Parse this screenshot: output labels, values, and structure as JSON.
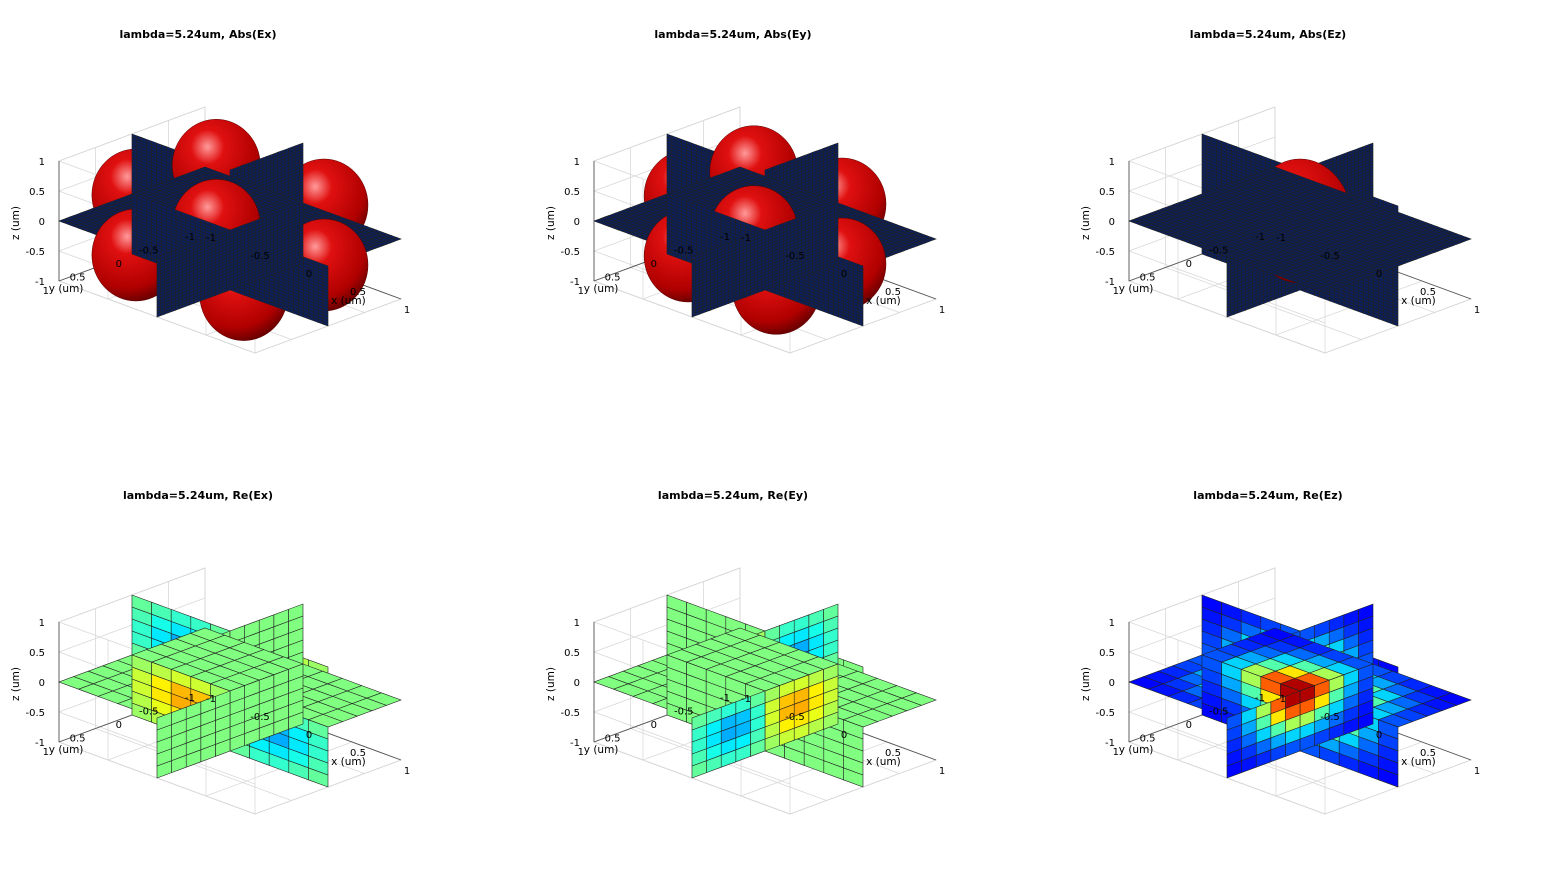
{
  "chart_data": [
    {
      "type": "3d-slice",
      "kind": "abs",
      "component": "Ex",
      "title": "lambda=5.24um,  Abs(Ex)",
      "xlabel": "x (um)",
      "ylabel": "y (um)",
      "zlabel": "z (um)",
      "xlim": [
        -1,
        1
      ],
      "ylim": [
        -1,
        1
      ],
      "zlim": [
        -1,
        1
      ],
      "xticks": [
        "-1",
        "-0.5",
        "0",
        "0.5",
        "1"
      ],
      "yticks": [
        "-1",
        "-0.5",
        "0",
        "0.5",
        "1"
      ],
      "zticks": [
        "-1",
        "-0.5",
        "0",
        "0.5",
        "1"
      ],
      "slices": [
        "x=0",
        "y=0",
        "z=0"
      ],
      "isosurface_lobes": [
        [
          0.55,
          0.55,
          0.5
        ],
        [
          -0.55,
          0.55,
          0.5
        ],
        [
          0.55,
          -0.55,
          0.5
        ],
        [
          -0.55,
          -0.55,
          0.5
        ],
        [
          0.55,
          0.55,
          -0.5
        ],
        [
          -0.55,
          0.55,
          -0.5
        ],
        [
          0.55,
          -0.55,
          -0.5
        ],
        [
          -0.55,
          -0.55,
          -0.5
        ]
      ],
      "isosurface_color": "#cc0000",
      "slice_color": "#0a1f5c"
    },
    {
      "type": "3d-slice",
      "kind": "abs",
      "component": "Ey",
      "title": "lambda=5.24um,  Abs(Ey)",
      "xlabel": "x (um)",
      "ylabel": "y (um)",
      "zlabel": "z (um)",
      "xlim": [
        -1,
        1
      ],
      "ylim": [
        -1,
        1
      ],
      "zlim": [
        -1,
        1
      ],
      "xticks": [
        "-1",
        "-0.5",
        "0",
        "0.5",
        "1"
      ],
      "yticks": [
        "-1",
        "-0.5",
        "0",
        "0.5",
        "1"
      ],
      "zticks": [
        "-1",
        "-0.5",
        "0",
        "0.5",
        "1"
      ],
      "slices": [
        "x=0",
        "y=0",
        "z=0"
      ],
      "isosurface_lobes": [
        [
          0.45,
          0.45,
          0.5
        ],
        [
          -0.45,
          0.45,
          0.5
        ],
        [
          0.45,
          -0.45,
          0.5
        ],
        [
          -0.45,
          -0.45,
          0.5
        ],
        [
          0.45,
          0.45,
          -0.5
        ],
        [
          -0.45,
          0.45,
          -0.5
        ],
        [
          0.45,
          -0.45,
          -0.5
        ],
        [
          -0.45,
          -0.45,
          -0.5
        ]
      ],
      "isosurface_color": "#cc0000",
      "slice_color": "#0a1f5c"
    },
    {
      "type": "3d-slice",
      "kind": "abs",
      "component": "Ez",
      "title": "lambda=5.24um,  Abs(Ez)",
      "xlabel": "x (um)",
      "ylabel": "y (um)",
      "zlabel": "z (um)",
      "xlim": [
        -1,
        1
      ],
      "ylim": [
        -1,
        1
      ],
      "zlim": [
        -1,
        1
      ],
      "xticks": [
        "-1",
        "-0.5",
        "0",
        "0.5",
        "1"
      ],
      "yticks": [
        "-1",
        "-0.5",
        "0",
        "0.5",
        "1"
      ],
      "zticks": [
        "-1",
        "-0.5",
        "0",
        "0.5",
        "1"
      ],
      "slices": [
        "x=0",
        "y=0",
        "z=0"
      ],
      "isosurface_lobes": [
        [
          0,
          0,
          0.15
        ]
      ],
      "isosurface_color": "#cc0000",
      "slice_color": "#0a1f5c"
    },
    {
      "type": "3d-slice",
      "kind": "re",
      "component": "Ex",
      "title": "lambda=5.24um,  Re(Ex)",
      "xlabel": "x (um)",
      "ylabel": "y (um)",
      "zlabel": "z (um)",
      "xlim": [
        -1,
        1
      ],
      "ylim": [
        -1,
        1
      ],
      "zlim": [
        -1,
        1
      ],
      "xticks": [
        "-1",
        "-0.5",
        "0",
        "0.5",
        "1"
      ],
      "yticks": [
        "-1",
        "-0.5",
        "0",
        "0.5",
        "1"
      ],
      "zticks": [
        "-1",
        "-0.5",
        "0",
        "0.5",
        "1"
      ],
      "slices": [
        "x=0",
        "y=0",
        "z=0"
      ],
      "grid_cells": 10,
      "colormap": "jet"
    },
    {
      "type": "3d-slice",
      "kind": "re",
      "component": "Ey",
      "title": "lambda=5.24um,  Re(Ey)",
      "xlabel": "x (um)",
      "ylabel": "y (um)",
      "zlabel": "z (um)",
      "xlim": [
        -1,
        1
      ],
      "ylim": [
        -1,
        1
      ],
      "zlim": [
        -1,
        1
      ],
      "xticks": [
        "-1",
        "-0.5",
        "0",
        "0.5",
        "1"
      ],
      "yticks": [
        "-1",
        "-0.5",
        "0",
        "0.5",
        "1"
      ],
      "zticks": [
        "-1",
        "-0.5",
        "0",
        "0.5",
        "1"
      ],
      "slices": [
        "x=0",
        "y=0",
        "z=0"
      ],
      "grid_cells": 10,
      "colormap": "jet"
    },
    {
      "type": "3d-slice",
      "kind": "re",
      "component": "Ez",
      "title": "lambda=5.24um,  Re(Ez)",
      "xlabel": "x (um)",
      "ylabel": "y (um)",
      "zlabel": "z (um)",
      "xlim": [
        -1,
        1
      ],
      "ylim": [
        -1,
        1
      ],
      "zlim": [
        -1,
        1
      ],
      "xticks": [
        "-1",
        "-0.5",
        "0",
        "0.5",
        "1"
      ],
      "yticks": [
        "-1",
        "-0.5",
        "0",
        "0.5",
        "1"
      ],
      "zticks": [
        "-1",
        "-0.5",
        "0",
        "0.5",
        "1"
      ],
      "slices": [
        "x=0",
        "y=0",
        "z=0"
      ],
      "grid_cells": 10,
      "colormap": "jet"
    }
  ]
}
